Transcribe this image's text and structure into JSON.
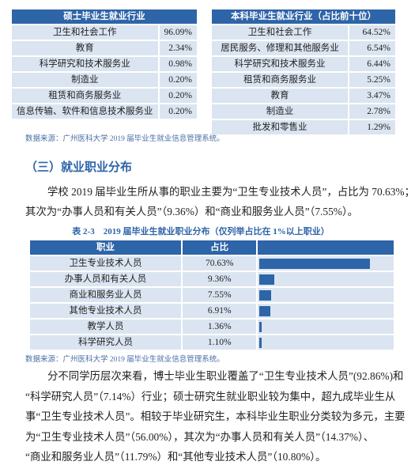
{
  "master_table": {
    "header": "硕士毕业生就业行业",
    "rows": [
      [
        "卫生和社会工作",
        "96.09%"
      ],
      [
        "教育",
        "2.34%"
      ],
      [
        "科学研究和技术服务业",
        "0.98%"
      ],
      [
        "制造业",
        "0.20%"
      ],
      [
        "租赁和商务服务业",
        "0.20%"
      ],
      [
        "信息传输、软件和信息技术服务业",
        "0.20%"
      ]
    ]
  },
  "undergrad_table": {
    "header": "本科毕业生就业行业（占比前十位）",
    "rows": [
      [
        "卫生和社会工作",
        "64.52%"
      ],
      [
        "居民服务、修理和其他服务业",
        "6.54%"
      ],
      [
        "科学研究和技术服务业",
        "6.44%"
      ],
      [
        "租赁和商务服务业",
        "5.25%"
      ],
      [
        "教育",
        "3.47%"
      ],
      [
        "制造业",
        "2.78%"
      ],
      [
        "批发和零售业",
        "1.29%"
      ]
    ]
  },
  "source_1": "数据来源：广州医科大学 2019 届毕业生就业信息管理系统。",
  "section_heading": "（三）就业职业分布",
  "paragraph_1": [
    "学校 2019 届毕业生所从事的职业主要为“卫生专业技术人员”，占比为 70.63%；",
    "其次为“办事人员和有关人员”（9.36%）和“商业和服务业人员”（7.55%）。"
  ],
  "occupation_table": {
    "caption": "表 2-3　2019 届毕业生就业职业分布（仅列举占比在 1%以上职业）",
    "headers": [
      "职业",
      "占比"
    ],
    "categories": [
      "卫生专业技术人员",
      "办事人员和有关人员",
      "商业和服务业人员",
      "其他专业技术人员",
      "教学人员",
      "科学研究人员"
    ],
    "values": [
      70.63,
      9.36,
      7.55,
      6.91,
      1.36,
      1.1
    ],
    "value_labels": [
      "70.63%",
      "9.36%",
      "7.55%",
      "6.91%",
      "1.36%",
      "1.10%"
    ]
  },
  "source_2": "数据来源：广州医科大学 2019 届毕业生就业信息管理系统。",
  "paragraph_2": [
    "分不同学历层次来看，博士毕业生职业覆盖了“卫生专业技术人员”(92.86%)和",
    "“科学研究人员”（7.14%）行业；硕士研究生就业职业较为集中，超九成毕业生从",
    "事“卫生专业技术人员”。相较于毕业研究生，本科毕业生职业分类较为多元，主要",
    "为“卫生专业技术人员”（56.00%），其次为“办事人员和有关人员”（14.37%）、",
    "“商业和服务业人员”（11.79%）和“其他专业技术人员”（10.80%）。"
  ]
}
